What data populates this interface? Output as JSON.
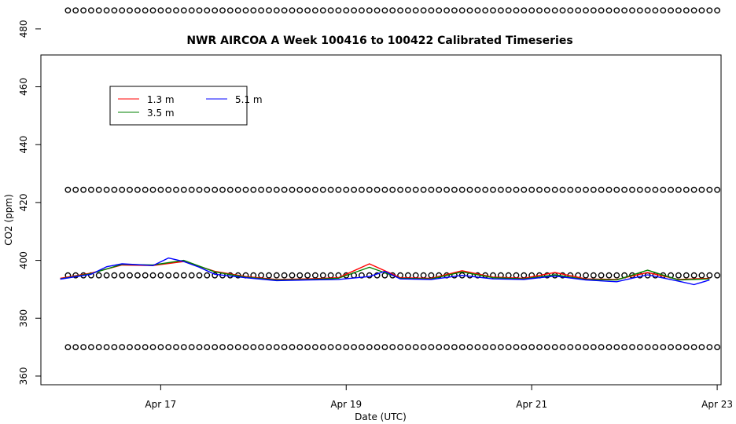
{
  "chart_data": {
    "type": "line",
    "title": "NWR AIRCOA A  Week 100416 to 100422  Calibrated Timeseries",
    "xlabel": "Date (UTC)",
    "ylabel": "CO2 (ppm)",
    "xlim": [
      "2010-04-15T17:00",
      "2010-04-23T01:00"
    ],
    "ylim": [
      357,
      471
    ],
    "x_ticks": [
      {
        "label": "Apr 17",
        "value": "2010-04-17T00:00"
      },
      {
        "label": "Apr 19",
        "value": "2010-04-19T00:00"
      },
      {
        "label": "Apr 21",
        "value": "2010-04-21T00:00"
      },
      {
        "label": "Apr 23",
        "value": "2010-04-23T00:00"
      }
    ],
    "y_ticks": [
      360,
      380,
      400,
      420,
      440,
      460,
      480
    ],
    "grid": false,
    "legend_position": "top-left",
    "series": [
      {
        "name": "1.3 m",
        "color": "#ff0000",
        "x": [
          "2010-04-15T22:00",
          "2010-04-16T06:00",
          "2010-04-16T14:00",
          "2010-04-16T22:00",
          "2010-04-17T06:00",
          "2010-04-17T14:00",
          "2010-04-17T22:00",
          "2010-04-18T06:00",
          "2010-04-18T14:00",
          "2010-04-18T22:00",
          "2010-04-19T06:00",
          "2010-04-19T14:00",
          "2010-04-19T22:00",
          "2010-04-20T06:00",
          "2010-04-20T14:00",
          "2010-04-20T22:00",
          "2010-04-21T06:00",
          "2010-04-21T14:00",
          "2010-04-21T22:00",
          "2010-04-22T06:00",
          "2010-04-22T14:00",
          "2010-04-22T22:00"
        ],
        "y": [
          393.8,
          395.6,
          398.4,
          398.2,
          399.6,
          396.2,
          394.4,
          393.4,
          393.6,
          394.0,
          398.8,
          394.0,
          393.8,
          396.4,
          394.2,
          393.8,
          395.8,
          393.6,
          393.4,
          395.8,
          393.4,
          393.8
        ]
      },
      {
        "name": "3.5 m",
        "color": "#008000",
        "x": [
          "2010-04-15T22:00",
          "2010-04-16T06:00",
          "2010-04-16T14:00",
          "2010-04-16T22:00",
          "2010-04-17T06:00",
          "2010-04-17T14:00",
          "2010-04-17T22:00",
          "2010-04-18T06:00",
          "2010-04-18T14:00",
          "2010-04-18T22:00",
          "2010-04-19T06:00",
          "2010-04-19T14:00",
          "2010-04-19T22:00",
          "2010-04-20T06:00",
          "2010-04-20T14:00",
          "2010-04-20T22:00",
          "2010-04-21T06:00",
          "2010-04-21T14:00",
          "2010-04-21T22:00",
          "2010-04-22T06:00",
          "2010-04-22T14:00",
          "2010-04-22T22:00"
        ],
        "y": [
          393.6,
          395.4,
          398.6,
          398.4,
          400.0,
          396.0,
          394.2,
          393.2,
          393.4,
          393.8,
          397.6,
          393.8,
          393.6,
          396.0,
          394.0,
          393.6,
          395.0,
          393.4,
          393.2,
          396.6,
          393.2,
          393.6
        ]
      },
      {
        "name": "5.1 m",
        "color": "#0000ff",
        "x": [
          "2010-04-15T22:00",
          "2010-04-16T06:00",
          "2010-04-16T10:00",
          "2010-04-16T14:00",
          "2010-04-16T22:00",
          "2010-04-17T02:00",
          "2010-04-17T06:00",
          "2010-04-17T10:00",
          "2010-04-17T14:00",
          "2010-04-17T22:00",
          "2010-04-18T06:00",
          "2010-04-18T14:00",
          "2010-04-18T22:00",
          "2010-04-19T06:00",
          "2010-04-19T10:00",
          "2010-04-19T14:00",
          "2010-04-19T22:00",
          "2010-04-20T06:00",
          "2010-04-20T14:00",
          "2010-04-20T22:00",
          "2010-04-21T06:00",
          "2010-04-21T14:00",
          "2010-04-21T22:00",
          "2010-04-22T06:00",
          "2010-04-22T14:00",
          "2010-04-22T18:00",
          "2010-04-22T22:00"
        ],
        "y": [
          393.5,
          395.2,
          397.8,
          398.8,
          398.2,
          400.8,
          399.6,
          397.6,
          395.2,
          394.0,
          393.0,
          393.2,
          393.4,
          394.4,
          396.2,
          393.6,
          393.4,
          394.8,
          393.6,
          393.4,
          394.6,
          393.2,
          392.6,
          395.0,
          392.8,
          391.6,
          393.2
        ]
      }
    ],
    "markers": {
      "type": "circle-open",
      "color": "#000000",
      "x_start": "2010-04-16T00:00",
      "x_end": "2010-04-23T00:00",
      "levels": [
        486.4,
        424.4,
        394.8,
        370.0
      ]
    },
    "legend": [
      "1.3 m",
      "3.5 m",
      "5.1 m"
    ]
  }
}
